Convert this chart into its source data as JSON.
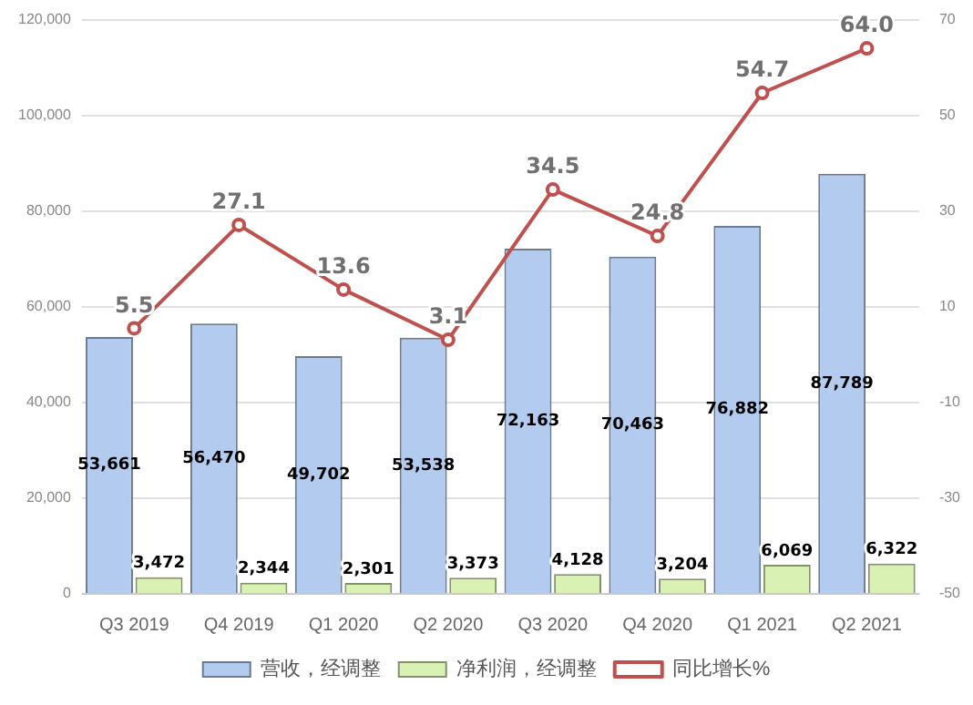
{
  "chart_data": {
    "type": "bar",
    "categories": [
      "Q3 2019",
      "Q4 2019",
      "Q1 2020",
      "Q2 2020",
      "Q3 2020",
      "Q4 2020",
      "Q1 2021",
      "Q2 2021"
    ],
    "series": [
      {
        "name": "营收，经调整",
        "color": "#b4cbf0",
        "values": [
          53661,
          56470,
          49702,
          53538,
          72163,
          70463,
          76882,
          87789
        ],
        "value_labels": [
          "53,661",
          "56,470",
          "49,702",
          "53,538",
          "72,163",
          "70,463",
          "76,882",
          "87,789"
        ]
      },
      {
        "name": "净利润，经调整",
        "color": "#d9f2b4",
        "values": [
          3472,
          2344,
          2301,
          3373,
          4128,
          3204,
          6069,
          6322
        ],
        "value_labels": [
          "3,472",
          "2,344",
          "2,301",
          "3,373",
          "4,128",
          "3,204",
          "6,069",
          "6,322"
        ]
      },
      {
        "name": "同比增长%",
        "type": "line",
        "axis": "y2",
        "color": "#c0504d",
        "values": [
          5.5,
          27.1,
          13.6,
          3.1,
          34.5,
          24.8,
          54.7,
          64.0
        ],
        "value_labels": [
          "5.5",
          "27.1",
          "13.6",
          "3.1",
          "34.5",
          "24.8",
          "54.7",
          "64.0"
        ]
      }
    ],
    "ylim": [
      0,
      120000
    ],
    "yticks": [
      {
        "value": 0,
        "label": "0"
      },
      {
        "value": 20000,
        "label": "20,000"
      },
      {
        "value": 40000,
        "label": "40,000"
      },
      {
        "value": 60000,
        "label": "60,000"
      },
      {
        "value": 80000,
        "label": "80,000"
      },
      {
        "value": 100000,
        "label": "100,000"
      },
      {
        "value": 120000,
        "label": "120,000"
      }
    ],
    "y2lim": [
      -50,
      70
    ],
    "y2ticks": [
      -50,
      -30,
      -10,
      10,
      30,
      50,
      70
    ],
    "grid": "y",
    "legend": "bottom",
    "marker": "circle"
  }
}
